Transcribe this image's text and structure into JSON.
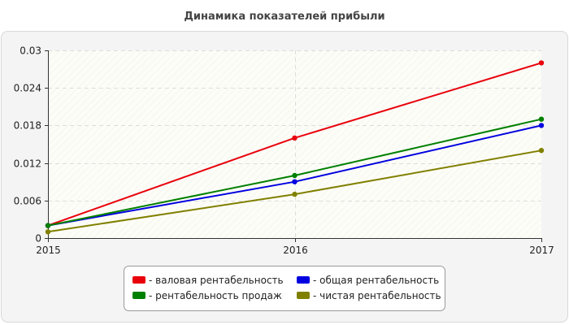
{
  "chart_data": {
    "type": "line",
    "title": "Динамика показателей прибыли",
    "xlabel": "",
    "ylabel": "",
    "categories": [
      "2015",
      "2016",
      "2017"
    ],
    "ylim": [
      0,
      0.03
    ],
    "yticks": [
      "0",
      "0.006",
      "0.012",
      "0.018",
      "0.024",
      "0.03"
    ],
    "ytick_values": [
      0,
      0.006,
      0.012,
      0.018,
      0.024,
      0.03
    ],
    "grid": true,
    "legend_position": "bottom-center",
    "series": [
      {
        "name": "- валовая рентабельность",
        "color": "#e8000b",
        "values": [
          0.002,
          0.016,
          0.028
        ]
      },
      {
        "name": "- общая рентабельность",
        "color": "#0000e0",
        "values": [
          0.002,
          0.009,
          0.018
        ]
      },
      {
        "name": "- рентабельность продаж",
        "color": "#008000",
        "values": [
          0.002,
          0.01,
          0.019
        ]
      },
      {
        "name": "- чистая рентабельность",
        "color": "#808000",
        "values": [
          0.001,
          0.007,
          0.014
        ]
      }
    ]
  }
}
